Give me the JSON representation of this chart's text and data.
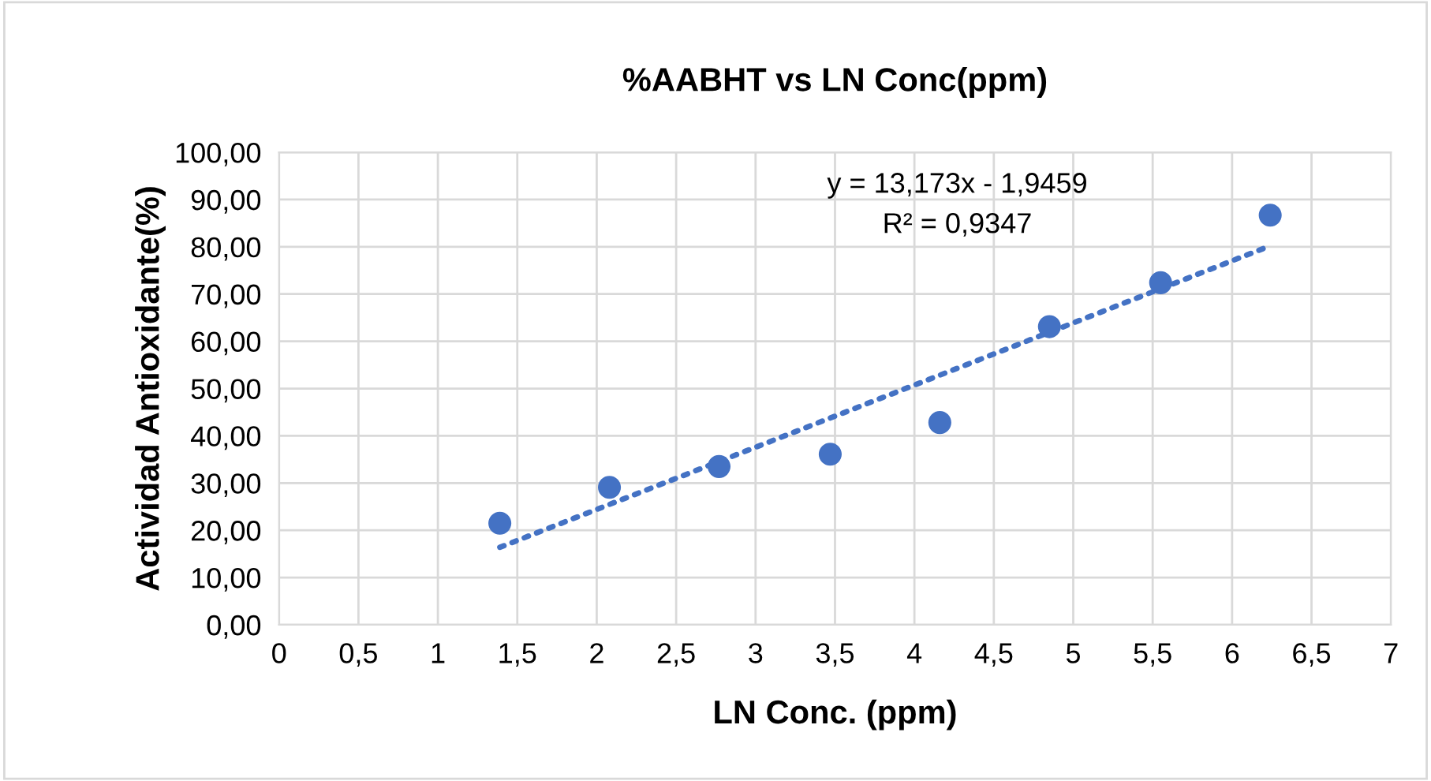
{
  "chart_data": {
    "type": "scatter",
    "title": "%AABHT vs LN Conc(ppm)",
    "xlabel": "LN Conc. (ppm)",
    "ylabel": "Actividad Antioxidante(%)",
    "x": [
      1.39,
      2.08,
      2.77,
      3.47,
      4.16,
      4.85,
      5.55,
      6.24
    ],
    "series": [
      {
        "color": "#4472c4",
        "marker": "circle",
        "values": [
          21.5,
          29.1,
          33.5,
          36.1,
          42.8,
          63.1,
          72.4,
          86.7
        ]
      },
      {
        "type": "line",
        "color": "#4472c4",
        "line_style": "dotted",
        "x": [
          1.39,
          6.24
        ],
        "values": [
          16.4,
          80.2
        ]
      }
    ],
    "annotations": [
      "y = 13,173x - 1,9459",
      "R² = 0,9347"
    ],
    "xlim": [
      0,
      7
    ],
    "ylim": [
      0,
      100
    ],
    "xticks": [
      0,
      {
        "value": 0.5,
        "label": "0,5"
      },
      1,
      {
        "value": 1.5,
        "label": "1,5"
      },
      2,
      {
        "value": 2.5,
        "label": "2,5"
      },
      3,
      {
        "value": 3.5,
        "label": "3,5"
      },
      4,
      {
        "value": 4.5,
        "label": "4,5"
      },
      5,
      {
        "value": 5.5,
        "label": "5,5"
      },
      6,
      {
        "value": 6.5,
        "label": "6,5"
      },
      7
    ],
    "yticks": [
      {
        "value": 0,
        "label": "0,00"
      },
      {
        "value": 10,
        "label": "10,00"
      },
      {
        "value": 20,
        "label": "20,00"
      },
      {
        "value": 30,
        "label": "30,00"
      },
      {
        "value": 40,
        "label": "40,00"
      },
      {
        "value": 50,
        "label": "50,00"
      },
      {
        "value": 60,
        "label": "60,00"
      },
      {
        "value": 70,
        "label": "70,00"
      },
      {
        "value": 80,
        "label": "80,00"
      },
      {
        "value": 90,
        "label": "90,00"
      },
      {
        "value": 100,
        "label": "100,00"
      }
    ],
    "grid": true
  }
}
